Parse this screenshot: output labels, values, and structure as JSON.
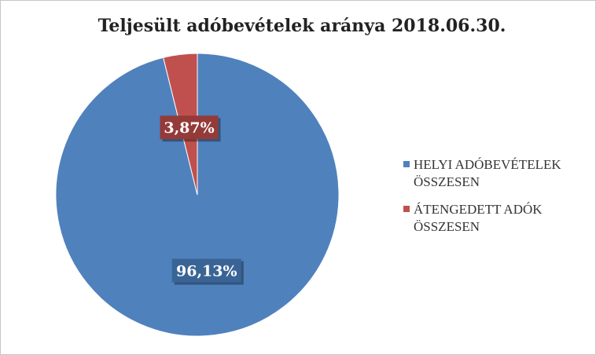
{
  "chart_data": {
    "type": "pie",
    "title": "Teljesült adóbevételek aránya 2018.06.30.",
    "categories": [
      "HELYI ADÓBEVÉTELEK ÖSSZESEN",
      "ÁTENGEDETT ADÓK ÖSSZESEN"
    ],
    "values": [
      96.13,
      3.87
    ],
    "data_labels": [
      "96,13%",
      "3,87%"
    ],
    "colors": [
      "#4f81bd",
      "#c0504d"
    ],
    "label_colors": [
      "#3a6496",
      "#943b39"
    ],
    "legend_position": "right",
    "legend_lines": [
      [
        "HELYI ADÓBEVÉTELEK",
        "ÖSSZESEN"
      ],
      [
        "ÁTENGEDETT ADÓK",
        "ÖSSZESEN"
      ]
    ]
  }
}
